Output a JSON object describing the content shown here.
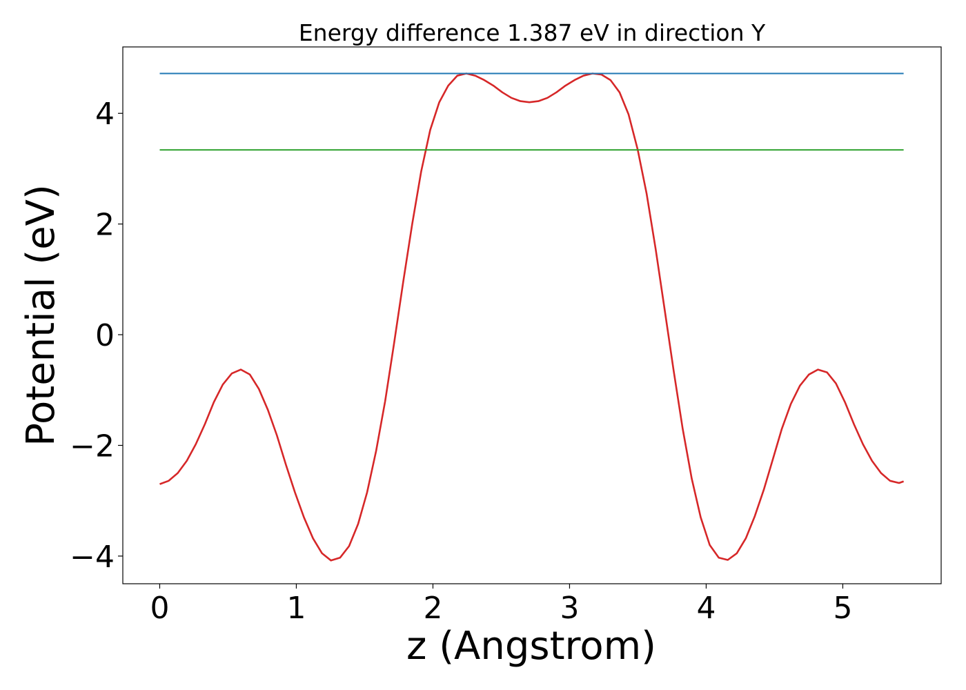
{
  "chart_data": {
    "type": "line",
    "title": "Energy difference 1.387 eV in direction Y",
    "xlabel": "z (Angstrom)",
    "ylabel": "Potential (eV)",
    "xlim": [
      -0.27,
      5.72
    ],
    "ylim": [
      -4.5,
      5.2
    ],
    "x_ticks": [
      0,
      1,
      2,
      3,
      4,
      5
    ],
    "x_tick_labels": [
      "0",
      "1",
      "2",
      "3",
      "4",
      "5"
    ],
    "y_ticks": [
      -4,
      -2,
      0,
      2,
      4
    ],
    "y_tick_labels": [
      "−4",
      "−2",
      "0",
      "2",
      "4"
    ],
    "grid": false,
    "series": [
      {
        "color": "#d62728",
        "style": "line",
        "x": [
          0,
          0.066,
          0.132,
          0.198,
          0.264,
          0.33,
          0.396,
          0.462,
          0.528,
          0.594,
          0.66,
          0.726,
          0.792,
          0.858,
          0.924,
          0.99,
          1.056,
          1.122,
          1.188,
          1.254,
          1.32,
          1.386,
          1.452,
          1.518,
          1.584,
          1.65,
          1.716,
          1.782,
          1.848,
          1.914,
          1.98,
          2.046,
          2.112,
          2.178,
          2.244,
          2.31,
          2.376,
          2.442,
          2.508,
          2.574,
          2.64,
          2.706,
          2.772,
          2.838,
          2.904,
          2.97,
          3.036,
          3.102,
          3.168,
          3.234,
          3.3,
          3.366,
          3.432,
          3.498,
          3.564,
          3.63,
          3.696,
          3.762,
          3.828,
          3.894,
          3.96,
          4.026,
          4.092,
          4.158,
          4.224,
          4.29,
          4.356,
          4.422,
          4.488,
          4.554,
          4.62,
          4.686,
          4.752,
          4.818,
          4.884,
          4.95,
          5.016,
          5.082,
          5.148,
          5.214,
          5.28,
          5.346,
          5.412,
          5.445
        ],
        "values": [
          -2.7,
          -2.64,
          -2.5,
          -2.28,
          -1.98,
          -1.62,
          -1.22,
          -0.9,
          -0.7,
          -0.63,
          -0.72,
          -0.98,
          -1.36,
          -1.82,
          -2.35,
          -2.85,
          -3.3,
          -3.68,
          -3.95,
          -4.08,
          -4.03,
          -3.82,
          -3.42,
          -2.85,
          -2.1,
          -1.2,
          -0.15,
          0.95,
          2.0,
          2.95,
          3.7,
          4.2,
          4.5,
          4.68,
          4.72,
          4.68,
          4.6,
          4.5,
          4.38,
          4.28,
          4.22,
          4.2,
          4.22,
          4.28,
          4.38,
          4.5,
          4.6,
          4.68,
          4.72,
          4.7,
          4.6,
          4.38,
          3.98,
          3.35,
          2.55,
          1.55,
          0.45,
          -0.65,
          -1.7,
          -2.6,
          -3.3,
          -3.8,
          -4.03,
          -4.07,
          -3.95,
          -3.68,
          -3.28,
          -2.8,
          -2.25,
          -1.7,
          -1.25,
          -0.92,
          -0.72,
          -0.63,
          -0.68,
          -0.88,
          -1.22,
          -1.62,
          -1.98,
          -2.28,
          -2.5,
          -2.64,
          -2.68,
          -2.65
        ]
      },
      {
        "color": "#1f77b4",
        "style": "hline",
        "x": [
          0,
          5.445
        ],
        "values": [
          4.72,
          4.72
        ]
      },
      {
        "color": "#2ca02c",
        "style": "hline",
        "x": [
          0,
          5.445
        ],
        "values": [
          3.34,
          3.34
        ]
      }
    ]
  }
}
